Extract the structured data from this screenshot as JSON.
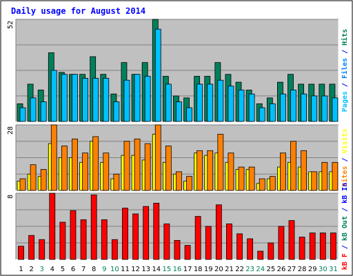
{
  "title": "Daily usage for August 2014",
  "colors": {
    "background": "#ffffff",
    "plot_background": "#c0c0c0",
    "hits": "#00805c",
    "files": "#0080ff",
    "pages": "#00c0ff",
    "visits": "#ffff00",
    "sites": "#ff8000",
    "kb_f": "#ff0000",
    "kb_out": "#00805c",
    "kb_in": "#0000ff"
  },
  "chart_data": [
    {
      "type": "bar",
      "panel": "hits-files-pages",
      "ymax_label": "52",
      "ylim": [
        0,
        52
      ],
      "right_label": [
        {
          "text": "Pages",
          "color": "#00c0ff"
        },
        {
          "text": " / ",
          "color": "#0000ff"
        },
        {
          "text": "Files",
          "color": "#0080ff"
        },
        {
          "text": " / ",
          "color": "#0000ff"
        },
        {
          "text": "Hits",
          "color": "#00805c"
        }
      ],
      "categories": [
        "1",
        "2",
        "3",
        "4",
        "5",
        "6",
        "7",
        "8",
        "9",
        "10",
        "11",
        "12",
        "13",
        "14",
        "15",
        "16",
        "17",
        "18",
        "19",
        "20",
        "21",
        "22",
        "23",
        "24",
        "25",
        "26",
        "27",
        "28",
        "29",
        "30",
        "31"
      ],
      "series": [
        {
          "name": "Hits",
          "values": [
            9,
            19,
            16,
            35,
            25,
            24,
            24,
            33,
            24,
            14,
            30,
            24,
            30,
            52,
            23,
            13,
            12,
            23,
            23,
            30,
            24,
            20,
            16,
            9,
            12,
            20,
            24,
            19,
            19,
            19,
            19
          ]
        },
        {
          "name": "Pages",
          "values": [
            7,
            12,
            10,
            26,
            24,
            24,
            22,
            22,
            22,
            10,
            21,
            24,
            23,
            47,
            19,
            10,
            7,
            19,
            19,
            21,
            18,
            16,
            14,
            7,
            9,
            14,
            16,
            14,
            13,
            13,
            12
          ]
        }
      ]
    },
    {
      "type": "bar",
      "panel": "visits-sites",
      "ymax_label": "28",
      "ylim": [
        0,
        28
      ],
      "right_label": [
        {
          "text": "Sites",
          "color": "#ff8000"
        },
        {
          "text": " / ",
          "color": "#0000ff"
        },
        {
          "text": "Visits",
          "color": "#ffff00"
        }
      ],
      "categories": [
        "1",
        "2",
        "3",
        "4",
        "5",
        "6",
        "7",
        "8",
        "9",
        "10",
        "11",
        "12",
        "13",
        "14",
        "15",
        "16",
        "17",
        "18",
        "19",
        "20",
        "21",
        "22",
        "23",
        "24",
        "25",
        "26",
        "27",
        "28",
        "29",
        "30",
        "31"
      ],
      "series": [
        {
          "name": "Visits",
          "values": [
            4,
            7,
            6,
            20,
            14,
            14,
            12,
            21,
            12,
            5,
            15,
            15,
            13,
            24,
            12,
            7,
            4,
            16,
            15,
            16,
            12,
            9,
            9,
            3,
            5,
            10,
            12,
            10,
            8,
            8,
            8
          ]
        },
        {
          "name": "Sites",
          "values": [
            5,
            11,
            9,
            28,
            19,
            22,
            16,
            23,
            16,
            7,
            21,
            22,
            20,
            28,
            19,
            8,
            6,
            17,
            17,
            24,
            16,
            10,
            10,
            5,
            6,
            16,
            21,
            17,
            8,
            12,
            12
          ]
        }
      ]
    },
    {
      "type": "bar",
      "panel": "kb",
      "ymax_label": "8",
      "ylim": [
        0,
        8
      ],
      "right_label": [
        {
          "text": "kB F",
          "color": "#ff0000"
        },
        {
          "text": " / ",
          "color": "#0000ff"
        },
        {
          "text": "kB Out",
          "color": "#00805c"
        },
        {
          "text": " / ",
          "color": "#0000ff"
        },
        {
          "text": "kB In",
          "color": "#0000ff"
        }
      ],
      "categories": [
        "1",
        "2",
        "3",
        "4",
        "5",
        "6",
        "7",
        "8",
        "9",
        "10",
        "11",
        "12",
        "13",
        "14",
        "15",
        "16",
        "17",
        "18",
        "19",
        "20",
        "21",
        "22",
        "23",
        "24",
        "25",
        "26",
        "27",
        "28",
        "29",
        "30",
        "31"
      ],
      "series": [
        {
          "name": "kB F",
          "values": [
            1.6,
            2.9,
            2.4,
            8.0,
            4.5,
            5.9,
            4.8,
            7.8,
            4.8,
            2.4,
            6.2,
            5.5,
            6.4,
            6.8,
            4.3,
            2.3,
            1.7,
            5.2,
            4.0,
            6.6,
            4.3,
            3.1,
            2.5,
            1.0,
            2.0,
            4.0,
            4.7,
            2.7,
            3.2,
            3.2,
            3.2
          ]
        }
      ]
    }
  ],
  "xaxis": {
    "labels": [
      "1",
      "2",
      "3",
      "4",
      "5",
      "6",
      "7",
      "8",
      "9",
      "10",
      "11",
      "12",
      "13",
      "14",
      "15",
      "16",
      "17",
      "18",
      "19",
      "20",
      "21",
      "22",
      "23",
      "24",
      "25",
      "26",
      "27",
      "28",
      "29",
      "30",
      "31"
    ],
    "label_colors": [
      "#000000",
      "#000000",
      "#00805c",
      "#000000",
      "#000000",
      "#000000",
      "#000000",
      "#000000",
      "#00805c",
      "#00805c",
      "#000000",
      "#000000",
      "#000000",
      "#000000",
      "#00805c",
      "#00805c",
      "#000000",
      "#000000",
      "#000000",
      "#000000",
      "#000000",
      "#000000",
      "#00805c",
      "#00805c",
      "#000000",
      "#000000",
      "#000000",
      "#000000",
      "#000000",
      "#00805c",
      "#00805c"
    ]
  }
}
